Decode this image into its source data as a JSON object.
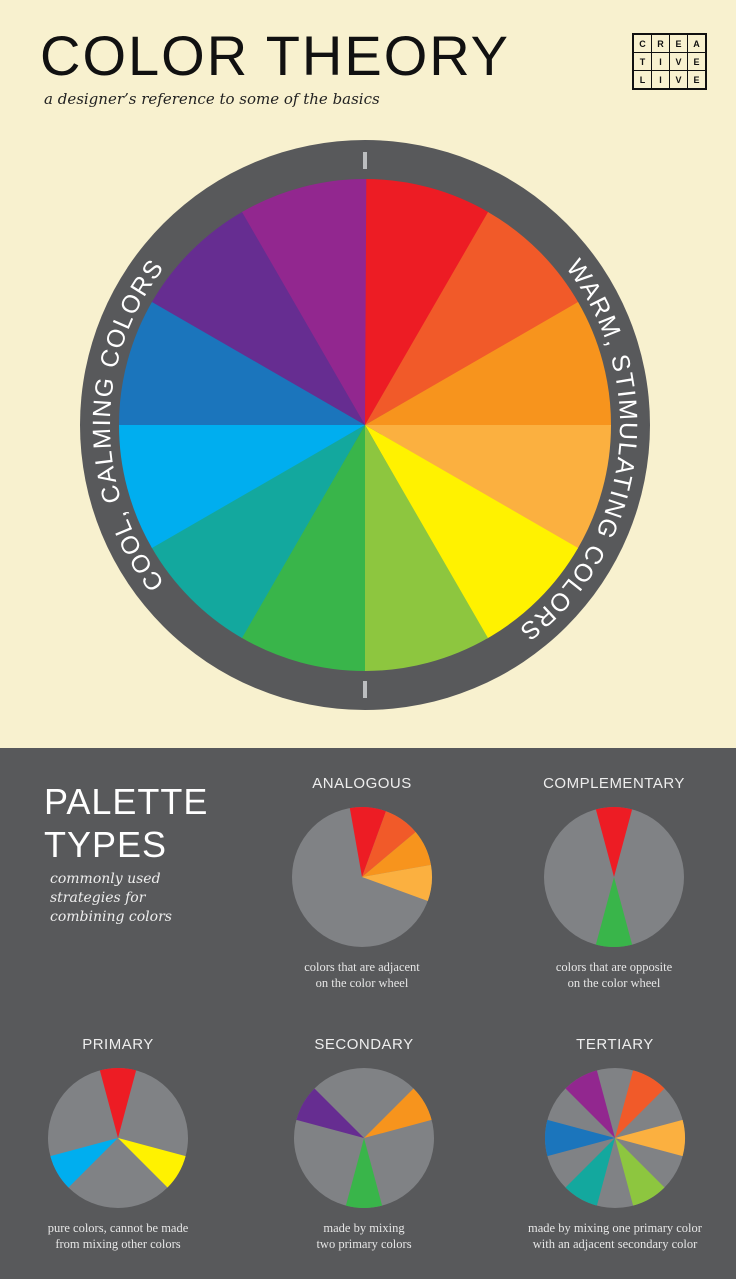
{
  "header": {
    "title": "COLOR THEORY",
    "subtitle": "a designer’s reference to some of the basics",
    "logo_letters": [
      "C",
      "R",
      "E",
      "A",
      "T",
      "I",
      "V",
      "E",
      "L",
      "I",
      "V",
      "E"
    ]
  },
  "colors": {
    "cream": "#f8f1cf",
    "dark": "#58595b",
    "pie_gray": "#808285",
    "tick": "#bcbec0"
  },
  "wheel": {
    "left_label": "COOL, CALMING COLORS",
    "right_label": "WARM, STIMULATING COLORS",
    "segments": [
      {
        "name": "red",
        "color": "#ed1c24"
      },
      {
        "name": "red-orange",
        "color": "#f15a29"
      },
      {
        "name": "orange",
        "color": "#f7941d"
      },
      {
        "name": "yellow-orange",
        "color": "#fbb040"
      },
      {
        "name": "yellow",
        "color": "#fff200"
      },
      {
        "name": "yellow-green",
        "color": "#8dc63f"
      },
      {
        "name": "green",
        "color": "#39b54a"
      },
      {
        "name": "blue-green",
        "color": "#13a89e"
      },
      {
        "name": "blue",
        "color": "#00aeef"
      },
      {
        "name": "blue-violet",
        "color": "#1b75bc"
      },
      {
        "name": "violet",
        "color": "#662d91"
      },
      {
        "name": "red-violet",
        "color": "#92278f"
      }
    ]
  },
  "palettes": {
    "heading_line1": "PALETTE",
    "heading_line2": "TYPES",
    "intro": [
      "commonly used",
      "strategies for",
      "combining colors"
    ],
    "types": [
      {
        "title": "ANALOGOUS",
        "desc": [
          "colors that are adjacent",
          "on the color wheel"
        ],
        "offset": -10,
        "slices": [
          0,
          1,
          2,
          3
        ]
      },
      {
        "title": "COMPLEMENTARY",
        "desc": [
          "colors that are opposite",
          "on the color wheel"
        ],
        "offset": -15,
        "slices": [
          0,
          6
        ]
      },
      {
        "title": "PRIMARY",
        "desc": [
          "pure colors, cannot be made",
          "from mixing other colors"
        ],
        "offset": -15,
        "slices": [
          4,
          8,
          0
        ]
      },
      {
        "title": "SECONDARY",
        "desc": [
          "made by mixing",
          "two primary colors"
        ],
        "offset": -15,
        "slices": [
          6,
          10,
          2
        ]
      },
      {
        "title": "TERTIARY",
        "desc": [
          "made by mixing one primary color",
          "with an adjacent secondary color"
        ],
        "offset": -15,
        "slices": [
          5,
          7,
          9,
          11,
          1,
          3
        ]
      }
    ]
  }
}
